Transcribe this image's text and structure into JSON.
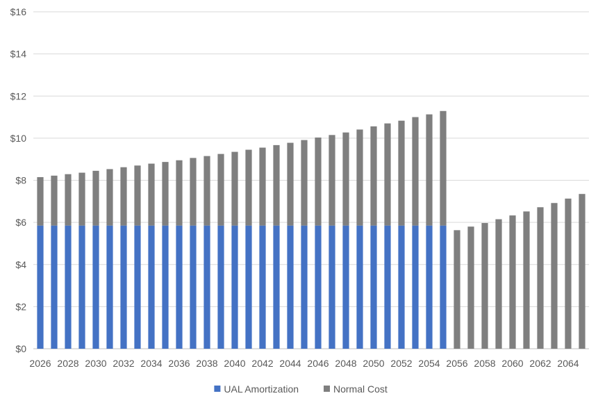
{
  "chart_data": {
    "type": "bar",
    "stacked": true,
    "categories": [
      "2026",
      "2027",
      "2028",
      "2029",
      "2030",
      "2031",
      "2032",
      "2033",
      "2034",
      "2035",
      "2036",
      "2037",
      "2038",
      "2039",
      "2040",
      "2041",
      "2042",
      "2043",
      "2044",
      "2045",
      "2046",
      "2047",
      "2048",
      "2049",
      "2050",
      "2051",
      "2052",
      "2053",
      "2054",
      "2055",
      "2056",
      "2057",
      "2058",
      "2059",
      "2060",
      "2061",
      "2062",
      "2063",
      "2064",
      "2065"
    ],
    "x_tick_labels": [
      "2026",
      "2028",
      "2030",
      "2032",
      "2034",
      "2036",
      "2038",
      "2040",
      "2042",
      "2044",
      "2046",
      "2048",
      "2050",
      "2052",
      "2054",
      "2056",
      "2058",
      "2060",
      "2062",
      "2064"
    ],
    "y_tick_labels": [
      "$0",
      "$2",
      "$4",
      "$6",
      "$8",
      "$10",
      "$12",
      "$14",
      "$16"
    ],
    "ylim": [
      0,
      16
    ],
    "grid": true,
    "legend_position": "bottom",
    "series": [
      {
        "name": "UAL Amortization",
        "color": "#4472C4",
        "values": [
          5.85,
          5.85,
          5.85,
          5.85,
          5.85,
          5.85,
          5.85,
          5.85,
          5.85,
          5.85,
          5.85,
          5.85,
          5.85,
          5.85,
          5.85,
          5.85,
          5.85,
          5.85,
          5.85,
          5.85,
          5.85,
          5.85,
          5.85,
          5.85,
          5.85,
          5.85,
          5.85,
          5.85,
          5.85,
          5.85,
          0,
          0,
          0,
          0,
          0,
          0,
          0,
          0,
          0,
          0
        ]
      },
      {
        "name": "Normal Cost",
        "color": "#7F7F7F",
        "values": [
          2.3,
          2.37,
          2.44,
          2.51,
          2.6,
          2.68,
          2.77,
          2.85,
          2.94,
          3.02,
          3.1,
          3.21,
          3.3,
          3.4,
          3.5,
          3.6,
          3.7,
          3.82,
          3.93,
          4.06,
          4.18,
          4.3,
          4.42,
          4.56,
          4.71,
          4.85,
          4.98,
          5.15,
          5.28,
          5.44,
          5.63,
          5.8,
          5.97,
          6.15,
          6.33,
          6.52,
          6.72,
          6.92,
          7.13,
          7.35
        ]
      }
    ]
  }
}
